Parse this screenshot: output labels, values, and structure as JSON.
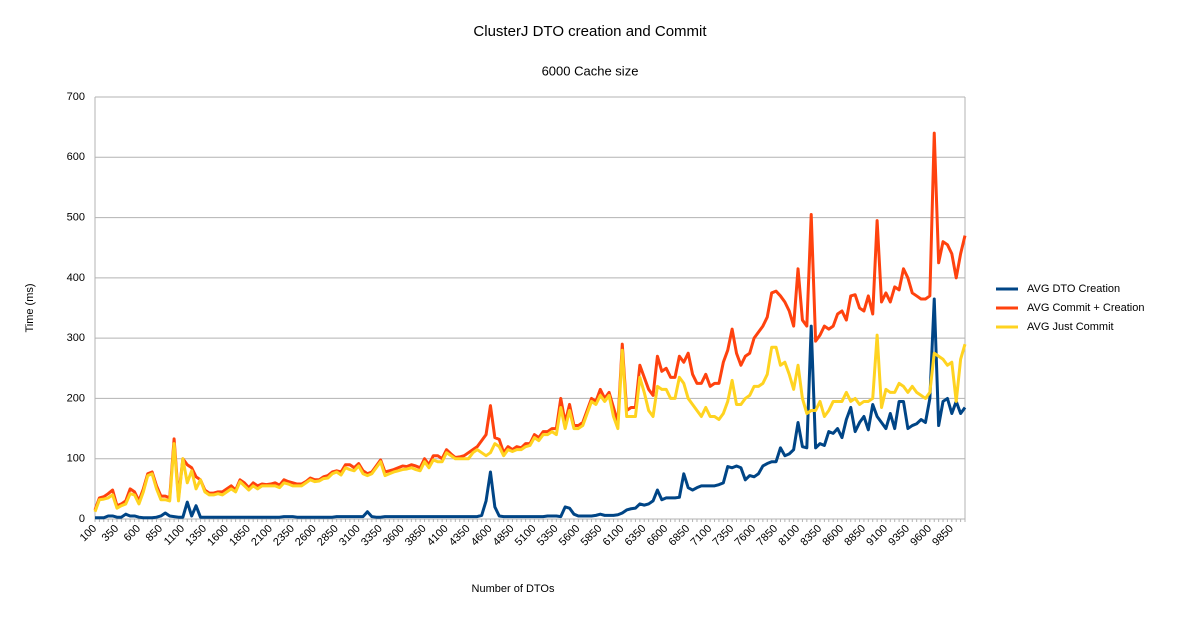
{
  "chart_data": {
    "type": "line",
    "title": "ClusterJ DTO creation and Commit",
    "subtitle": "6000 Cache size",
    "x_label": "Number of DTOs",
    "y_label": "Time (ms)",
    "categories": [
      100,
      null,
      null,
      null,
      null,
      350,
      null,
      null,
      null,
      null,
      600,
      null,
      null,
      null,
      null,
      850,
      null,
      null,
      null,
      null,
      1100,
      null,
      null,
      null,
      null,
      1350,
      null,
      null,
      null,
      null,
      1600,
      null,
      null,
      null,
      null,
      1850,
      null,
      null,
      null,
      null,
      2100,
      null,
      null,
      null,
      null,
      2350,
      null,
      null,
      null,
      null,
      2600,
      null,
      null,
      null,
      null,
      2850,
      null,
      null,
      null,
      null,
      3100,
      null,
      null,
      null,
      null,
      3350,
      null,
      null,
      null,
      null,
      3600,
      null,
      null,
      null,
      null,
      3850,
      null,
      null,
      null,
      null,
      4100,
      null,
      null,
      null,
      null,
      4350,
      null,
      null,
      null,
      null,
      4600,
      null,
      null,
      null,
      null,
      4850,
      null,
      null,
      null,
      null,
      5100,
      null,
      null,
      null,
      null,
      5350,
      null,
      null,
      null,
      null,
      5600,
      null,
      null,
      null,
      null,
      5850,
      null,
      null,
      null,
      null,
      6100,
      null,
      null,
      null,
      null,
      6350,
      null,
      null,
      null,
      null,
      6600,
      null,
      null,
      null,
      null,
      6850,
      null,
      null,
      null,
      null,
      7100,
      null,
      null,
      null,
      null,
      7350,
      null,
      null,
      null,
      null,
      7600,
      null,
      null,
      null,
      null,
      7850,
      null,
      null,
      null,
      null,
      8100,
      null,
      null,
      null,
      null,
      8350,
      null,
      null,
      null,
      null,
      8600,
      null,
      null,
      null,
      null,
      8850,
      null,
      null,
      null,
      null,
      9100,
      null,
      null,
      null,
      null,
      9350,
      null,
      null,
      null,
      null,
      9600,
      null,
      null,
      null,
      null,
      9850,
      null,
      null,
      null
    ],
    "series": [
      {
        "name": "AVG DTO Creation",
        "color": "#004586",
        "values": [
          2,
          2,
          2,
          5,
          5,
          3,
          3,
          8,
          5,
          5,
          3,
          2,
          2,
          2,
          3,
          5,
          10,
          5,
          4,
          3,
          3,
          28,
          5,
          22,
          3,
          3,
          3,
          3,
          3,
          3,
          3,
          3,
          3,
          3,
          3,
          3,
          3,
          3,
          3,
          3,
          3,
          3,
          3,
          4,
          4,
          4,
          3,
          3,
          3,
          3,
          3,
          3,
          3,
          3,
          3,
          4,
          4,
          4,
          4,
          4,
          4,
          4,
          12,
          4,
          3,
          3,
          4,
          4,
          4,
          4,
          4,
          4,
          4,
          4,
          4,
          4,
          4,
          4,
          4,
          4,
          4,
          4,
          4,
          4,
          4,
          4,
          4,
          4,
          6,
          30,
          78,
          20,
          5,
          4,
          4,
          4,
          4,
          4,
          4,
          4,
          4,
          4,
          4,
          5,
          5,
          5,
          4,
          20,
          18,
          8,
          5,
          5,
          5,
          5,
          6,
          8,
          6,
          6,
          6,
          7,
          10,
          15,
          17,
          18,
          25,
          23,
          25,
          30,
          48,
          32,
          35,
          35,
          35,
          36,
          75,
          52,
          48,
          52,
          55,
          55,
          55,
          55,
          57,
          60,
          87,
          85,
          88,
          85,
          65,
          72,
          70,
          75,
          88,
          92,
          95,
          95,
          118,
          105,
          108,
          115,
          160,
          120,
          118,
          320,
          118,
          125,
          122,
          145,
          142,
          150,
          135,
          165,
          185,
          145,
          160,
          170,
          148,
          190,
          170,
          160,
          150,
          175,
          150,
          195,
          195,
          150,
          155,
          158,
          165,
          160,
          200,
          365,
          155,
          195,
          200,
          175,
          195,
          175,
          185
        ]
      },
      {
        "name": "AVG Commit + Creation",
        "color": "#ff420e",
        "values": [
          15,
          35,
          37,
          42,
          48,
          22,
          25,
          30,
          50,
          45,
          30,
          50,
          75,
          78,
          55,
          38,
          38,
          35,
          133,
          35,
          100,
          90,
          85,
          70,
          65,
          48,
          43,
          43,
          45,
          45,
          50,
          55,
          48,
          65,
          60,
          52,
          60,
          55,
          58,
          57,
          58,
          60,
          56,
          65,
          62,
          60,
          58,
          58,
          62,
          68,
          65,
          65,
          70,
          72,
          78,
          80,
          78,
          90,
          90,
          85,
          92,
          80,
          75,
          78,
          88,
          98,
          78,
          80,
          82,
          85,
          88,
          87,
          90,
          88,
          85,
          100,
          90,
          105,
          105,
          100,
          115,
          108,
          102,
          103,
          105,
          110,
          115,
          120,
          130,
          140,
          188,
          135,
          132,
          110,
          120,
          115,
          120,
          118,
          125,
          125,
          140,
          135,
          145,
          145,
          150,
          150,
          200,
          160,
          190,
          155,
          155,
          160,
          180,
          200,
          195,
          215,
          200,
          210,
          185,
          160,
          290,
          180,
          185,
          185,
          255,
          235,
          215,
          205,
          270,
          245,
          250,
          235,
          235,
          270,
          260,
          275,
          240,
          225,
          225,
          240,
          220,
          225,
          225,
          260,
          280,
          315,
          275,
          255,
          270,
          275,
          300,
          310,
          320,
          335,
          375,
          378,
          370,
          360,
          345,
          320,
          415,
          330,
          320,
          505,
          295,
          305,
          320,
          315,
          320,
          340,
          345,
          330,
          370,
          372,
          350,
          345,
          370,
          340,
          495,
          360,
          375,
          360,
          385,
          380,
          415,
          400,
          375,
          370,
          365,
          365,
          370,
          640,
          425,
          460,
          455,
          440,
          400,
          440,
          470
        ]
      },
      {
        "name": "AVG Just Commit",
        "color": "#ffd320",
        "values": [
          12,
          32,
          33,
          35,
          40,
          18,
          22,
          25,
          42,
          40,
          25,
          45,
          72,
          75,
          50,
          32,
          32,
          30,
          125,
          30,
          100,
          60,
          80,
          50,
          65,
          45,
          40,
          40,
          42,
          40,
          45,
          50,
          45,
          62,
          55,
          48,
          55,
          50,
          55,
          55,
          55,
          55,
          52,
          60,
          58,
          55,
          55,
          55,
          60,
          65,
          62,
          63,
          67,
          68,
          75,
          78,
          73,
          85,
          82,
          80,
          88,
          75,
          72,
          75,
          85,
          95,
          72,
          75,
          78,
          80,
          82,
          83,
          85,
          82,
          80,
          95,
          85,
          98,
          95,
          95,
          110,
          105,
          100,
          100,
          100,
          100,
          110,
          115,
          110,
          105,
          110,
          125,
          120,
          105,
          115,
          112,
          115,
          115,
          120,
          122,
          135,
          130,
          140,
          140,
          145,
          140,
          185,
          150,
          180,
          150,
          150,
          155,
          175,
          195,
          190,
          205,
          195,
          205,
          170,
          150,
          280,
          170,
          170,
          170,
          235,
          210,
          180,
          170,
          220,
          215,
          215,
          200,
          200,
          235,
          225,
          200,
          190,
          180,
          170,
          185,
          170,
          170,
          165,
          175,
          195,
          230,
          190,
          190,
          200,
          205,
          220,
          220,
          225,
          240,
          285,
          285,
          255,
          260,
          240,
          215,
          255,
          200,
          175,
          180,
          180,
          195,
          170,
          180,
          195,
          195,
          195,
          210,
          195,
          200,
          190,
          195,
          195,
          200,
          305,
          185,
          215,
          210,
          210,
          225,
          220,
          210,
          220,
          210,
          205,
          200,
          210,
          275,
          270,
          265,
          255,
          260,
          195,
          265,
          290
        ]
      }
    ],
    "ylim": [
      0,
      700
    ],
    "yticks": [
      0,
      100,
      200,
      300,
      400,
      500,
      600,
      700
    ],
    "grid": true,
    "legend": "right"
  }
}
